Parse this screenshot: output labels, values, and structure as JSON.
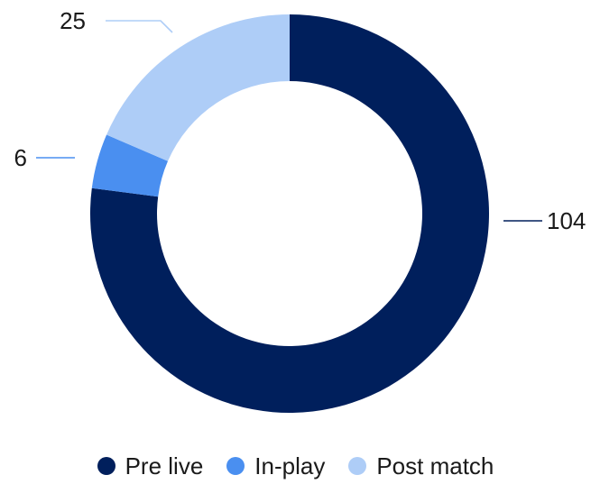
{
  "chart_data": {
    "type": "pie",
    "donut": true,
    "title": "",
    "categories": [
      "Pre live",
      "In-play",
      "Post match"
    ],
    "values": [
      104,
      6,
      25
    ],
    "colors": [
      "#001f5c",
      "#4a8ff0",
      "#aecdf7"
    ],
    "data_labels": [
      "104",
      "6",
      "25"
    ],
    "legend_position": "bottom"
  }
}
